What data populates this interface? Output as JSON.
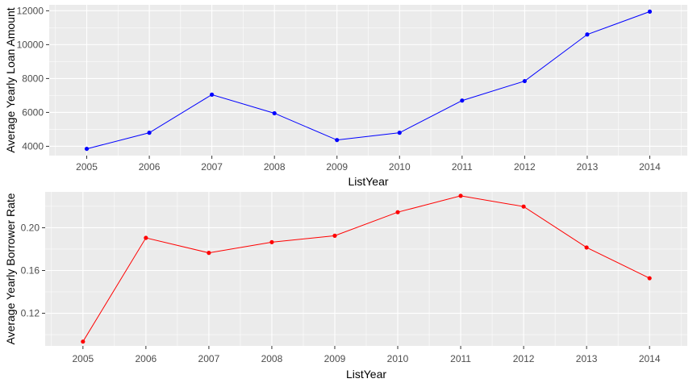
{
  "chart_data": [
    {
      "type": "line",
      "xlabel": "ListYear",
      "ylabel": "Average Yearly Loan Amount",
      "x": [
        2005,
        2006,
        2007,
        2008,
        2009,
        2010,
        2011,
        2012,
        2013,
        2014
      ],
      "series": [
        {
          "values": [
            3850,
            4800,
            7050,
            5950,
            4370,
            4800,
            6700,
            7850,
            10600,
            11950
          ]
        }
      ],
      "yticks": [
        4000,
        6000,
        8000,
        10000,
        12000
      ],
      "ylim": [
        3450,
        12350
      ],
      "xlim": [
        2004.4,
        2014.6
      ],
      "line_color": "#0000ff",
      "point_color": "#0000ff",
      "panel_background": "#ebebeb",
      "grid": true
    },
    {
      "type": "line",
      "xlabel": "ListYear",
      "ylabel": "Average Yearly Borrower Rate",
      "x": [
        2005,
        2006,
        2007,
        2008,
        2009,
        2010,
        2011,
        2012,
        2013,
        2014
      ],
      "series": [
        {
          "values": [
            0.0935,
            0.1905,
            0.1765,
            0.1865,
            0.1925,
            0.2145,
            0.2298,
            0.2198,
            0.1815,
            0.1528
          ]
        }
      ],
      "yticks": [
        0.12,
        0.16,
        0.2
      ],
      "ytick_labels": [
        "0.12",
        "0.16",
        "0.20"
      ],
      "ylim": [
        0.0895,
        0.2335
      ],
      "xlim": [
        2004.4,
        2014.6
      ],
      "line_color": "#ff0000",
      "point_color": "#ff0000",
      "panel_background": "#ebebeb",
      "grid": true
    }
  ]
}
